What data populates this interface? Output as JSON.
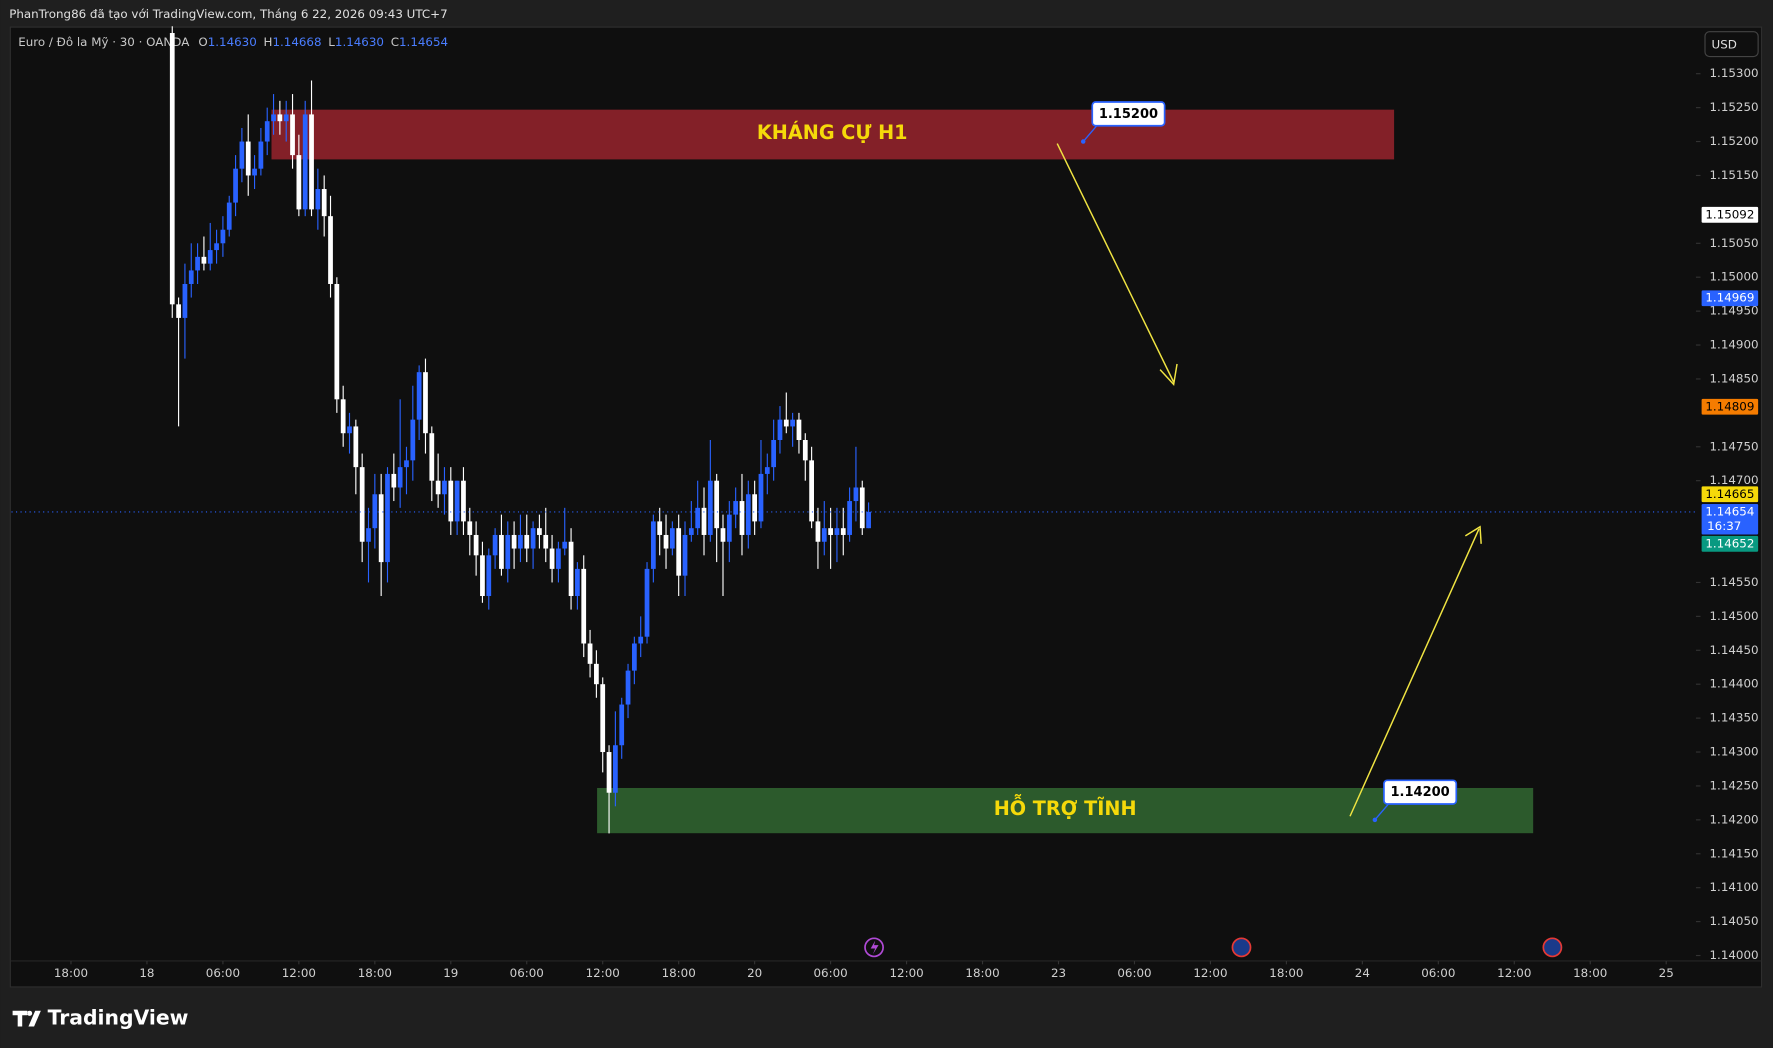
{
  "chart_data": {
    "type": "candlestick",
    "header": "PhanTrong86 đã tạo với TradingView.com, Tháng 6 22, 2026 09:43 UTC+7",
    "symbol": "Euro / Đô la Mỹ · 30 · OANDA",
    "ohlc_legend": [
      {
        "key": "O",
        "value": 1.1463,
        "label": "1.14630"
      },
      {
        "key": "H",
        "value": 1.14668,
        "label": "1.14668"
      },
      {
        "key": "L",
        "value": 1.1463,
        "label": "1.14630"
      },
      {
        "key": "C",
        "value": 1.14654,
        "label": "1.14654"
      }
    ],
    "currency": "USD",
    "brand": "TradingView",
    "up_color": "#2962ff",
    "down_color": "#ffffff",
    "grid": false,
    "open": [
      1.1536,
      1.1496,
      1.1494,
      1.1499,
      1.1501,
      1.1503,
      1.1502,
      1.1504,
      1.1505,
      1.1507,
      1.1511,
      1.1516,
      1.152,
      1.1515,
      1.1516,
      1.152,
      1.1523,
      1.1524,
      1.1523,
      1.1524,
      1.1518,
      1.151,
      1.1524,
      1.151,
      1.1513,
      1.1509,
      1.1499,
      1.1482,
      1.1477,
      1.1478,
      1.1472,
      1.1461,
      1.1463,
      1.1468,
      1.1458,
      1.1471,
      1.1469,
      1.1472,
      1.1473,
      1.1479,
      1.1486,
      1.1477,
      1.147,
      1.1468,
      1.147,
      1.1464,
      1.147,
      1.1464,
      1.1462,
      1.1459,
      1.1453,
      1.1459,
      1.1462,
      1.1457,
      1.1462,
      1.146,
      1.1462,
      1.146,
      1.1463,
      1.1462,
      1.146,
      1.1457,
      1.146,
      1.1461,
      1.1453,
      1.1457,
      1.1446,
      1.1443,
      1.144,
      1.143,
      1.1424,
      1.1431,
      1.1437,
      1.1442,
      1.1446,
      1.1447,
      1.1457,
      1.1464,
      1.1462,
      1.146,
      1.1463,
      1.1456,
      1.1462,
      1.1463,
      1.1466,
      1.1462,
      1.147,
      1.1463,
      1.1461,
      1.1465,
      1.1467,
      1.1462,
      1.1468,
      1.1464,
      1.1471,
      1.1472,
      1.1476,
      1.1479,
      1.1478,
      1.1479,
      1.1476,
      1.1473,
      1.1464,
      1.1461,
      1.1463,
      1.1462,
      1.1463,
      1.1462,
      1.1467,
      1.1469,
      1.1463
    ],
    "high": [
      1.1537,
      1.1497,
      1.1502,
      1.1505,
      1.1505,
      1.1506,
      1.1508,
      1.1507,
      1.1509,
      1.1512,
      1.1518,
      1.1522,
      1.1524,
      1.1518,
      1.1522,
      1.1525,
      1.1527,
      1.1526,
      1.1526,
      1.1527,
      1.1521,
      1.1526,
      1.1529,
      1.1516,
      1.1515,
      1.1512,
      1.15,
      1.1484,
      1.148,
      1.1479,
      1.1474,
      1.1466,
      1.1471,
      1.1471,
      1.1472,
      1.1474,
      1.1482,
      1.1475,
      1.1484,
      1.1487,
      1.1488,
      1.1478,
      1.1474,
      1.1472,
      1.1472,
      1.147,
      1.1472,
      1.1466,
      1.1464,
      1.1461,
      1.146,
      1.1463,
      1.1465,
      1.1464,
      1.1464,
      1.1465,
      1.1465,
      1.1464,
      1.1465,
      1.1466,
      1.1462,
      1.1461,
      1.1466,
      1.1463,
      1.1458,
      1.1459,
      1.1448,
      1.1445,
      1.1441,
      1.1431,
      1.1436,
      1.1438,
      1.1443,
      1.1447,
      1.145,
      1.1458,
      1.1465,
      1.1466,
      1.1465,
      1.1464,
      1.1465,
      1.1464,
      1.1467,
      1.147,
      1.1469,
      1.1476,
      1.1471,
      1.1465,
      1.1467,
      1.1469,
      1.1471,
      1.147,
      1.147,
      1.1476,
      1.1474,
      1.1479,
      1.1481,
      1.1483,
      1.148,
      1.148,
      1.1477,
      1.1475,
      1.1466,
      1.1467,
      1.1466,
      1.1466,
      1.1466,
      1.1469,
      1.1475,
      1.147,
      1.14668
    ],
    "low": [
      1.1494,
      1.1478,
      1.1488,
      1.1497,
      1.1499,
      1.1501,
      1.1501,
      1.1502,
      1.1503,
      1.1506,
      1.1509,
      1.1514,
      1.1512,
      1.1513,
      1.1515,
      1.1518,
      1.1521,
      1.1521,
      1.152,
      1.1516,
      1.1509,
      1.1509,
      1.1509,
      1.1507,
      1.1506,
      1.1497,
      1.148,
      1.1475,
      1.1474,
      1.1468,
      1.1458,
      1.1455,
      1.146,
      1.1453,
      1.1455,
      1.1467,
      1.1466,
      1.1468,
      1.147,
      1.1476,
      1.1474,
      1.1467,
      1.1466,
      1.1465,
      1.1462,
      1.1462,
      1.1462,
      1.1459,
      1.1456,
      1.1452,
      1.1451,
      1.1457,
      1.1456,
      1.1455,
      1.1457,
      1.1458,
      1.1458,
      1.1457,
      1.146,
      1.1458,
      1.1455,
      1.1455,
      1.1459,
      1.1451,
      1.1451,
      1.1444,
      1.1441,
      1.1438,
      1.1427,
      1.1418,
      1.1422,
      1.1429,
      1.1435,
      1.144,
      1.1444,
      1.1446,
      1.1455,
      1.1459,
      1.1457,
      1.1459,
      1.1453,
      1.1453,
      1.1461,
      1.1462,
      1.1459,
      1.1461,
      1.1458,
      1.1453,
      1.1458,
      1.1463,
      1.1459,
      1.146,
      1.1462,
      1.1463,
      1.1468,
      1.147,
      1.1474,
      1.1477,
      1.1475,
      1.1474,
      1.147,
      1.1463,
      1.1457,
      1.1459,
      1.1457,
      1.1458,
      1.1459,
      1.1461,
      1.1464,
      1.1462,
      1.1463
    ],
    "close": [
      1.1496,
      1.1494,
      1.1499,
      1.1501,
      1.1503,
      1.1502,
      1.1504,
      1.1505,
      1.1507,
      1.1511,
      1.1516,
      1.152,
      1.1515,
      1.1516,
      1.152,
      1.1523,
      1.1524,
      1.1523,
      1.1524,
      1.1518,
      1.151,
      1.1524,
      1.151,
      1.1513,
      1.1509,
      1.1499,
      1.1482,
      1.1477,
      1.1478,
      1.1472,
      1.1461,
      1.1463,
      1.1468,
      1.1458,
      1.1471,
      1.1469,
      1.1472,
      1.1473,
      1.1479,
      1.1486,
      1.1477,
      1.147,
      1.1468,
      1.147,
      1.1464,
      1.147,
      1.1464,
      1.1462,
      1.1459,
      1.1453,
      1.1459,
      1.1462,
      1.1457,
      1.1462,
      1.146,
      1.1462,
      1.146,
      1.1463,
      1.1462,
      1.146,
      1.1457,
      1.146,
      1.1461,
      1.1453,
      1.1457,
      1.1446,
      1.1443,
      1.144,
      1.143,
      1.1424,
      1.1431,
      1.1437,
      1.1442,
      1.1446,
      1.1447,
      1.1457,
      1.1464,
      1.1462,
      1.146,
      1.1463,
      1.1456,
      1.1462,
      1.1463,
      1.1466,
      1.1462,
      1.147,
      1.1463,
      1.1461,
      1.1465,
      1.1467,
      1.1462,
      1.1468,
      1.1464,
      1.1471,
      1.1472,
      1.1476,
      1.1479,
      1.1478,
      1.1479,
      1.1476,
      1.1473,
      1.1464,
      1.1461,
      1.1463,
      1.1462,
      1.1463,
      1.1462,
      1.1467,
      1.1469,
      1.1463,
      1.14654
    ],
    "xlim": [
      -25.4,
      240.7
    ],
    "xticks": [
      {
        "value": -16,
        "label": "18:00"
      },
      {
        "value": -4,
        "label": "18"
      },
      {
        "value": 8,
        "label": "06:00"
      },
      {
        "value": 20,
        "label": "12:00"
      },
      {
        "value": 32,
        "label": "18:00"
      },
      {
        "value": 44,
        "label": "19"
      },
      {
        "value": 56,
        "label": "06:00"
      },
      {
        "value": 68,
        "label": "12:00"
      },
      {
        "value": 80,
        "label": "18:00"
      },
      {
        "value": 92,
        "label": "20"
      },
      {
        "value": 104,
        "label": "06:00"
      },
      {
        "value": 116,
        "label": "12:00"
      },
      {
        "value": 128,
        "label": "18:00"
      },
      {
        "value": 140,
        "label": "23"
      },
      {
        "value": 152,
        "label": "06:00"
      },
      {
        "value": 164,
        "label": "12:00"
      },
      {
        "value": 176,
        "label": "18:00"
      },
      {
        "value": 188,
        "label": "24"
      },
      {
        "value": 200,
        "label": "06:00"
      },
      {
        "value": 212,
        "label": "12:00"
      },
      {
        "value": 224,
        "label": "18:00"
      },
      {
        "value": 236,
        "label": "25"
      }
    ],
    "ylim": [
      1.13992,
      1.15367
    ],
    "yticks": [
      {
        "value": 1.153,
        "label": "1.15300"
      },
      {
        "value": 1.1525,
        "label": "1.15250"
      },
      {
        "value": 1.152,
        "label": "1.15200"
      },
      {
        "value": 1.1515,
        "label": "1.15150"
      },
      {
        "value": 1.1505,
        "label": "1.15050"
      },
      {
        "value": 1.15,
        "label": "1.15000"
      },
      {
        "value": 1.1495,
        "label": "1.14950"
      },
      {
        "value": 1.149,
        "label": "1.14900"
      },
      {
        "value": 1.1485,
        "label": "1.14850"
      },
      {
        "value": 1.1475,
        "label": "1.14750"
      },
      {
        "value": 1.147,
        "label": "1.14700"
      },
      {
        "value": 1.1455,
        "label": "1.14550"
      },
      {
        "value": 1.145,
        "label": "1.14500"
      },
      {
        "value": 1.1445,
        "label": "1.14450"
      },
      {
        "value": 1.144,
        "label": "1.14400"
      },
      {
        "value": 1.1435,
        "label": "1.14350"
      },
      {
        "value": 1.143,
        "label": "1.14300"
      },
      {
        "value": 1.1425,
        "label": "1.14250"
      },
      {
        "value": 1.142,
        "label": "1.14200"
      },
      {
        "value": 1.1415,
        "label": "1.14150"
      },
      {
        "value": 1.141,
        "label": "1.14100"
      },
      {
        "value": 1.1405,
        "label": "1.14050"
      },
      {
        "value": 1.14,
        "label": "1.14000"
      }
    ],
    "price_labels": [
      {
        "value": 1.15092,
        "color": "#ffffff",
        "text_color": "#000000"
      },
      {
        "value": 1.14969,
        "color": "#2962ff",
        "text_color": "#ffffff"
      },
      {
        "value": 1.14809,
        "color": "#f57c00",
        "text_color": "#000000"
      },
      {
        "value": 1.14665,
        "color": "#f5d90a",
        "text_color": "#000000"
      },
      {
        "value": 1.14654,
        "color": "#2962ff",
        "text_color": "#ffffff",
        "countdown": "16:37"
      },
      {
        "value": 1.14652,
        "color": "#089981",
        "text_color": "#ffffff"
      }
    ],
    "zones": [
      {
        "label": "KHÁNG CỰ H1",
        "color": "#832028"
      },
      {
        "label": "HỖ TRỢ TĨNH",
        "color": "#2c5a2c"
      }
    ],
    "callouts": [
      {
        "value": 1.152,
        "label": "1.15200"
      },
      {
        "value": 1.142,
        "label": "1.14200"
      }
    ]
  }
}
